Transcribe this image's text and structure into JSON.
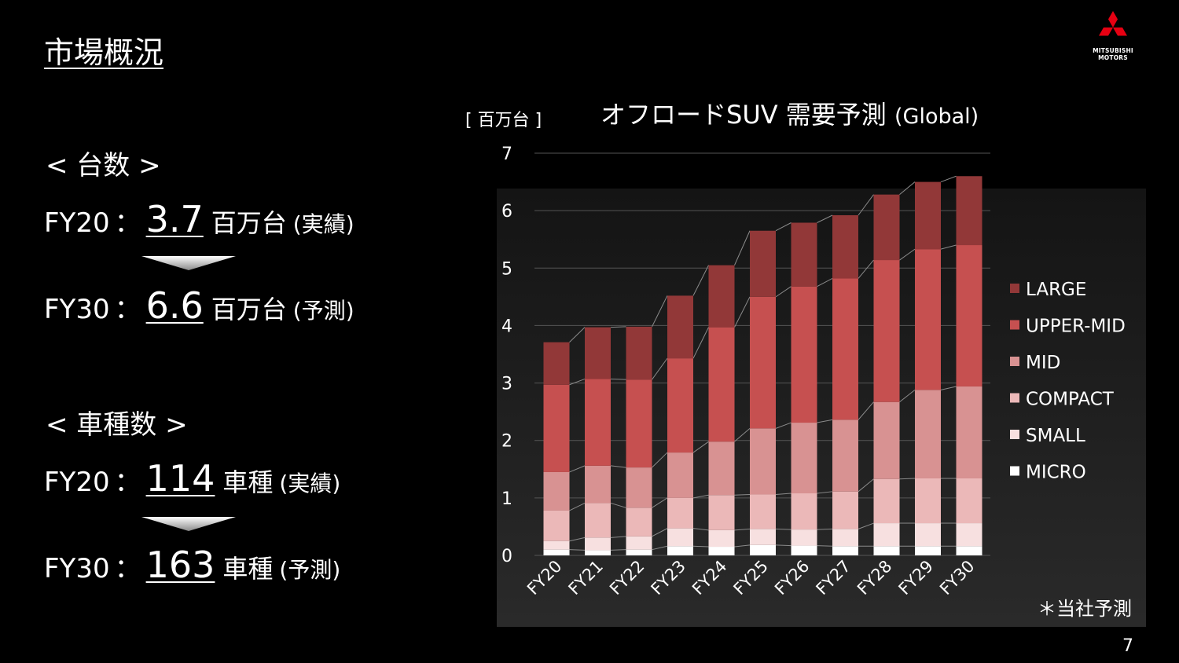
{
  "slide": {
    "title": "市場概況",
    "page_number": "7",
    "logo_text_line1": "MITSUBISHI",
    "logo_text_line2": "MOTORS"
  },
  "units_section": {
    "heading": "< 台数 >",
    "rows": [
      {
        "fy": "FY20",
        "colon": "：",
        "value": "3.7",
        "unit": "百万台",
        "note": "(実績)"
      },
      {
        "fy": "FY30",
        "colon": "：",
        "value": "6.6",
        "unit": "百万台",
        "note": "(予測)"
      }
    ]
  },
  "models_section": {
    "heading": "< 車種数 >",
    "rows": [
      {
        "fy": "FY20",
        "colon": "：",
        "value": "114",
        "unit": "車種",
        "note": "(実績)"
      },
      {
        "fy": "FY30",
        "colon": "：",
        "value": "163",
        "unit": "車種",
        "note": "(予測)"
      }
    ]
  },
  "chart_title": "オフロードSUV 需要予測",
  "chart_title_suffix": "(Global)",
  "chart_unit": "[ 百万台 ]",
  "chart_note": "＊当社予測",
  "chart_data": {
    "type": "bar",
    "stacked": true,
    "title": "オフロードSUV 需要予測 (Global)",
    "ylabel": "[ 百万台 ]",
    "ylim": [
      0,
      7
    ],
    "yticks": [
      0,
      1,
      2,
      3,
      4,
      5,
      6,
      7
    ],
    "grid": true,
    "legend_position": "right",
    "categories": [
      "FY20",
      "FY21",
      "FY22",
      "FY23",
      "FY24",
      "FY25",
      "FY26",
      "FY27",
      "FY28",
      "FY29",
      "FY30"
    ],
    "series": [
      {
        "name": "MICRO",
        "color": "#ffffff",
        "values": [
          0.1,
          0.09,
          0.1,
          0.16,
          0.15,
          0.18,
          0.17,
          0.16,
          0.16,
          0.16,
          0.16
        ]
      },
      {
        "name": "SMALL",
        "color": "#f7e0e0",
        "values": [
          0.15,
          0.22,
          0.23,
          0.31,
          0.29,
          0.28,
          0.28,
          0.3,
          0.4,
          0.4,
          0.4
        ]
      },
      {
        "name": "COMPACT",
        "color": "#ebb8b8",
        "values": [
          0.53,
          0.6,
          0.5,
          0.53,
          0.61,
          0.6,
          0.63,
          0.65,
          0.77,
          0.78,
          0.78
        ]
      },
      {
        "name": "MID",
        "color": "#d89292",
        "values": [
          0.67,
          0.65,
          0.7,
          0.79,
          0.93,
          1.15,
          1.23,
          1.25,
          1.34,
          1.54,
          1.6
        ]
      },
      {
        "name": "UPPER-MID",
        "color": "#c65050",
        "values": [
          1.52,
          1.51,
          1.53,
          1.64,
          1.99,
          2.29,
          2.37,
          2.46,
          2.47,
          2.45,
          2.46
        ]
      },
      {
        "name": "LARGE",
        "color": "#923838",
        "values": [
          0.74,
          0.9,
          0.92,
          1.09,
          1.08,
          1.15,
          1.11,
          1.1,
          1.14,
          1.17,
          1.2
        ]
      }
    ],
    "totals": [
      3.7,
      3.95,
      3.97,
      4.51,
      5.05,
      5.65,
      5.79,
      5.92,
      6.28,
      6.5,
      6.6
    ]
  }
}
